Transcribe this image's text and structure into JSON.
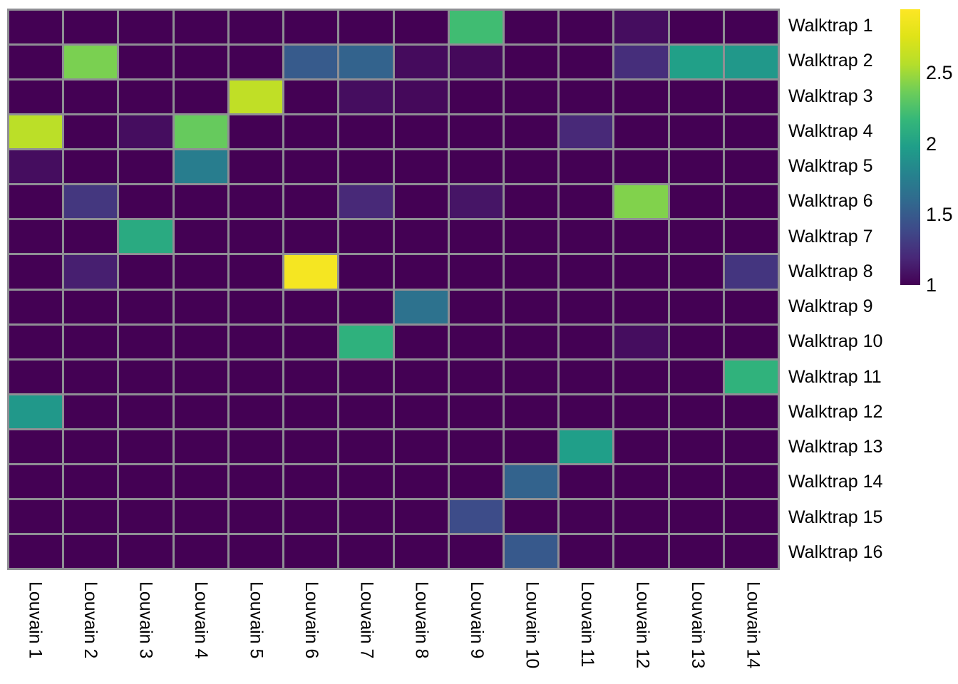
{
  "chart_data": {
    "type": "heatmap",
    "title": "",
    "rows": [
      "Walktrap 1",
      "Walktrap 2",
      "Walktrap 3",
      "Walktrap 4",
      "Walktrap 5",
      "Walktrap 6",
      "Walktrap 7",
      "Walktrap 8",
      "Walktrap 9",
      "Walktrap 10",
      "Walktrap 11",
      "Walktrap 12",
      "Walktrap 13",
      "Walktrap 14",
      "Walktrap 15",
      "Walktrap 16"
    ],
    "columns": [
      "Louvain 1",
      "Louvain 2",
      "Louvain 3",
      "Louvain 4",
      "Louvain 5",
      "Louvain 6",
      "Louvain 7",
      "Louvain 8",
      "Louvain 9",
      "Louvain 10",
      "Louvain 11",
      "Louvain 12",
      "Louvain 13",
      "Louvain 14"
    ],
    "values": [
      [
        1,
        1,
        1,
        1,
        1,
        1,
        1,
        1,
        2.21,
        1,
        1,
        1.06,
        1,
        1
      ],
      [
        1,
        2.4,
        1,
        1,
        1,
        1.5,
        1.55,
        1.05,
        1.04,
        1,
        1,
        1.23,
        1.99,
        1.93
      ],
      [
        1,
        1,
        1,
        1,
        2.61,
        1,
        1.06,
        1.04,
        1,
        1,
        1,
        1,
        1,
        1
      ],
      [
        2.59,
        1,
        1.06,
        2.34,
        1,
        1,
        1,
        1,
        1,
        1,
        1.2,
        1,
        1,
        1
      ],
      [
        1.06,
        1,
        1,
        1.74,
        1,
        1,
        1,
        1,
        1,
        1,
        1,
        1,
        1,
        1
      ],
      [
        1,
        1.28,
        1,
        1,
        1,
        1,
        1.2,
        1,
        1.1,
        1,
        1,
        2.42,
        1,
        1
      ],
      [
        1,
        1,
        2.07,
        1,
        1,
        1,
        1,
        1,
        1,
        1,
        1,
        1,
        1,
        1
      ],
      [
        1,
        1.15,
        1,
        1,
        1,
        2.9,
        1,
        1,
        1,
        1,
        1,
        1,
        1,
        1.27
      ],
      [
        1,
        1,
        1,
        1,
        1,
        1,
        1,
        1.66,
        1,
        1,
        1,
        1,
        1,
        1
      ],
      [
        1,
        1,
        1,
        1,
        1,
        1,
        2.12,
        1,
        1,
        1,
        1,
        1.06,
        1,
        1
      ],
      [
        1,
        1,
        1,
        1,
        1,
        1,
        1,
        1,
        1,
        1,
        1,
        1,
        1,
        2.13
      ],
      [
        1.93,
        1,
        1,
        1,
        1,
        1,
        1,
        1,
        1,
        1,
        1,
        1,
        1,
        1
      ],
      [
        1,
        1,
        1,
        1,
        1,
        1,
        1,
        1,
        1,
        1,
        1.98,
        1,
        1,
        1
      ],
      [
        1,
        1,
        1,
        1,
        1,
        1,
        1,
        1,
        1,
        1.55,
        1,
        1,
        1,
        1
      ],
      [
        1,
        1,
        1,
        1,
        1,
        1,
        1,
        1,
        1.4,
        1,
        1,
        1,
        1,
        1
      ],
      [
        1,
        1,
        1,
        1,
        1,
        1,
        1,
        1,
        1,
        1.49,
        1,
        1,
        1,
        1
      ]
    ],
    "colormap": "viridis",
    "value_min": 1,
    "value_max": 2.95,
    "background_value": 1,
    "grid_line_color": "#8f8f94",
    "colorbar": {
      "position": "right",
      "ticks": [
        2.5,
        2,
        1.5,
        1
      ],
      "tick_labels": [
        "2.5",
        "2",
        "1.5",
        "1"
      ]
    },
    "xlabel": "",
    "ylabel": "",
    "legend": "none"
  }
}
